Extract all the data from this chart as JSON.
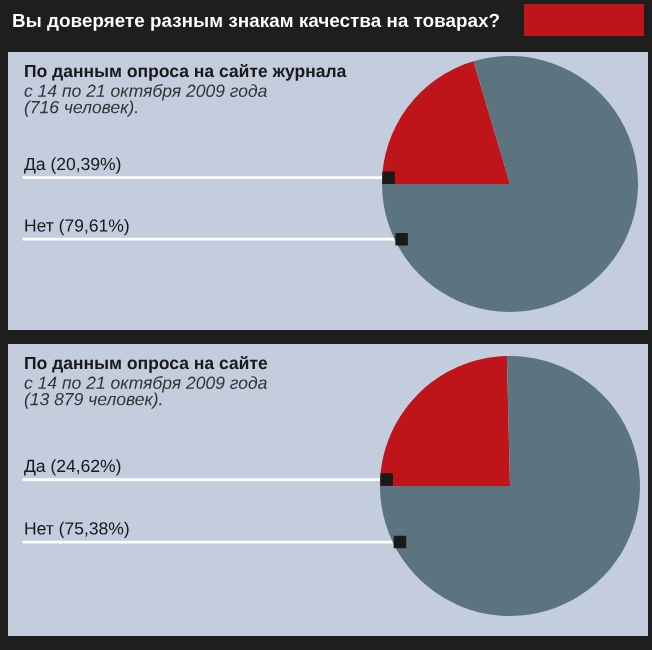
{
  "chart_data": [
    {
      "type": "pie",
      "title": "Вы доверяете разным знакам качества на товарах?",
      "subtitle": "По данным опроса на сайте журнала",
      "annotations": [
        "с 14 по 21 октября 2009 года\n(716 человек)."
      ],
      "categories": [
        "Да (20,39%)",
        "Нет (79,61%)"
      ],
      "values": [
        20.39,
        79.61
      ],
      "colors": [
        "#c0141b",
        "#5c7480"
      ]
    },
    {
      "type": "pie",
      "subtitle": "По данным опроса на сайте",
      "annotations": [
        "с 14 по 21 октября 2009 года\n(13 879 человек)."
      ],
      "categories": [
        "Да (24,62%)",
        "Нет (75,38%)"
      ],
      "values": [
        24.62,
        75.38
      ],
      "colors": [
        "#c0141b",
        "#5c7480"
      ]
    }
  ]
}
